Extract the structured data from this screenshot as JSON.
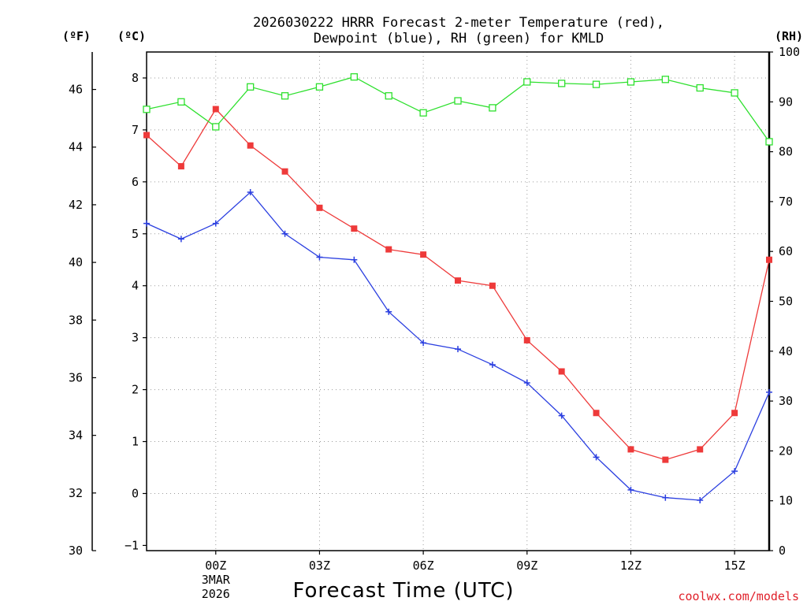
{
  "chart_data": {
    "type": "line",
    "title_line1": "2026030222 HRRR Forecast 2-meter Temperature (red),",
    "title_line2": "Dewpoint (blue), RH (green) for KMLD",
    "xlabel": "Forecast Time (UTC)",
    "credit": "coolwx.com/models",
    "unit_f": "(ºF)",
    "unit_c": "(ºC)",
    "unit_rh": "(RH)",
    "x_hours": [
      -2,
      -1,
      0,
      1,
      2,
      3,
      4,
      5,
      6,
      7,
      8,
      9,
      10,
      11,
      12,
      13,
      14,
      15,
      16
    ],
    "x_ticks": [
      {
        "hour": 0,
        "label": "00Z",
        "sub1": "3MAR",
        "sub2": "2026"
      },
      {
        "hour": 3,
        "label": "03Z"
      },
      {
        "hour": 6,
        "label": "06Z"
      },
      {
        "hour": 9,
        "label": "09Z"
      },
      {
        "hour": 12,
        "label": "12Z"
      },
      {
        "hour": 15,
        "label": "15Z"
      }
    ],
    "xlim": [
      -2,
      16
    ],
    "celsius_axis": {
      "range": [
        -1.1,
        8.5
      ],
      "ticks": [
        -1,
        0,
        1,
        2,
        3,
        4,
        5,
        6,
        7,
        8
      ]
    },
    "fahrenheit_axis": {
      "range": [
        30,
        47.3
      ],
      "ticks": [
        30,
        32,
        34,
        36,
        38,
        40,
        42,
        44,
        46
      ]
    },
    "rh_axis": {
      "range": [
        0,
        100
      ],
      "ticks": [
        0,
        10,
        20,
        30,
        40,
        50,
        60,
        70,
        80,
        90,
        100
      ]
    },
    "grid": true,
    "series": [
      {
        "name": "2-meter Temperature",
        "axis": "celsius",
        "color": "#ee3a3a",
        "marker": "filled-square",
        "values": [
          6.9,
          6.3,
          7.4,
          6.7,
          6.2,
          5.5,
          5.1,
          4.7,
          4.6,
          4.1,
          4.0,
          2.95,
          2.35,
          1.55,
          0.85,
          0.65,
          0.85,
          1.55,
          4.5
        ]
      },
      {
        "name": "Dewpoint",
        "axis": "celsius",
        "color": "#2b3fe0",
        "marker": "plus",
        "values": [
          5.2,
          4.9,
          5.2,
          5.8,
          5.0,
          4.55,
          4.5,
          3.5,
          2.9,
          2.78,
          2.48,
          2.13,
          1.5,
          0.7,
          0.07,
          -0.08,
          -0.13,
          0.43,
          1.95
        ]
      },
      {
        "name": "RH",
        "axis": "rh",
        "color": "#2ee02e",
        "marker": "open-square",
        "values": [
          88.5,
          90.0,
          85.0,
          93.0,
          91.2,
          93.0,
          95.0,
          91.2,
          87.8,
          90.2,
          88.8,
          94.0,
          93.7,
          93.5,
          94.0,
          94.5,
          92.8,
          91.8,
          82.0
        ]
      }
    ]
  }
}
